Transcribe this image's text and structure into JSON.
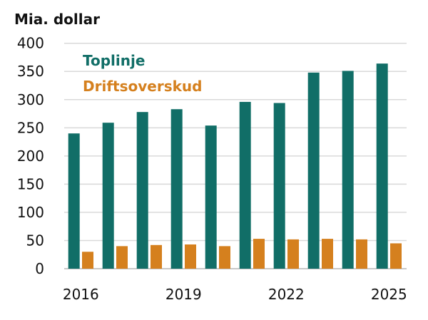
{
  "chart_data": {
    "type": "bar",
    "ylabel": "Mia. dollar",
    "categories": [
      "2016",
      "2017",
      "2018",
      "2019",
      "2020",
      "2021",
      "2022",
      "2023",
      "2024",
      "2025"
    ],
    "xtick_labels": [
      "2016",
      "2019",
      "2022",
      "2025"
    ],
    "yticks": [
      0,
      50,
      100,
      150,
      200,
      250,
      300,
      350,
      400
    ],
    "ylim": [
      0,
      400
    ],
    "grid": true,
    "legend_placement": "top-left",
    "series": [
      {
        "name": "Toplinje",
        "color": "#116e67",
        "values": [
          240,
          259,
          278,
          283,
          254,
          296,
          294,
          348,
          351,
          364
        ]
      },
      {
        "name": "Driftsoverskud",
        "color": "#d5801e",
        "values": [
          30,
          40,
          42,
          43,
          40,
          53,
          52,
          53,
          52,
          45
        ]
      }
    ]
  }
}
